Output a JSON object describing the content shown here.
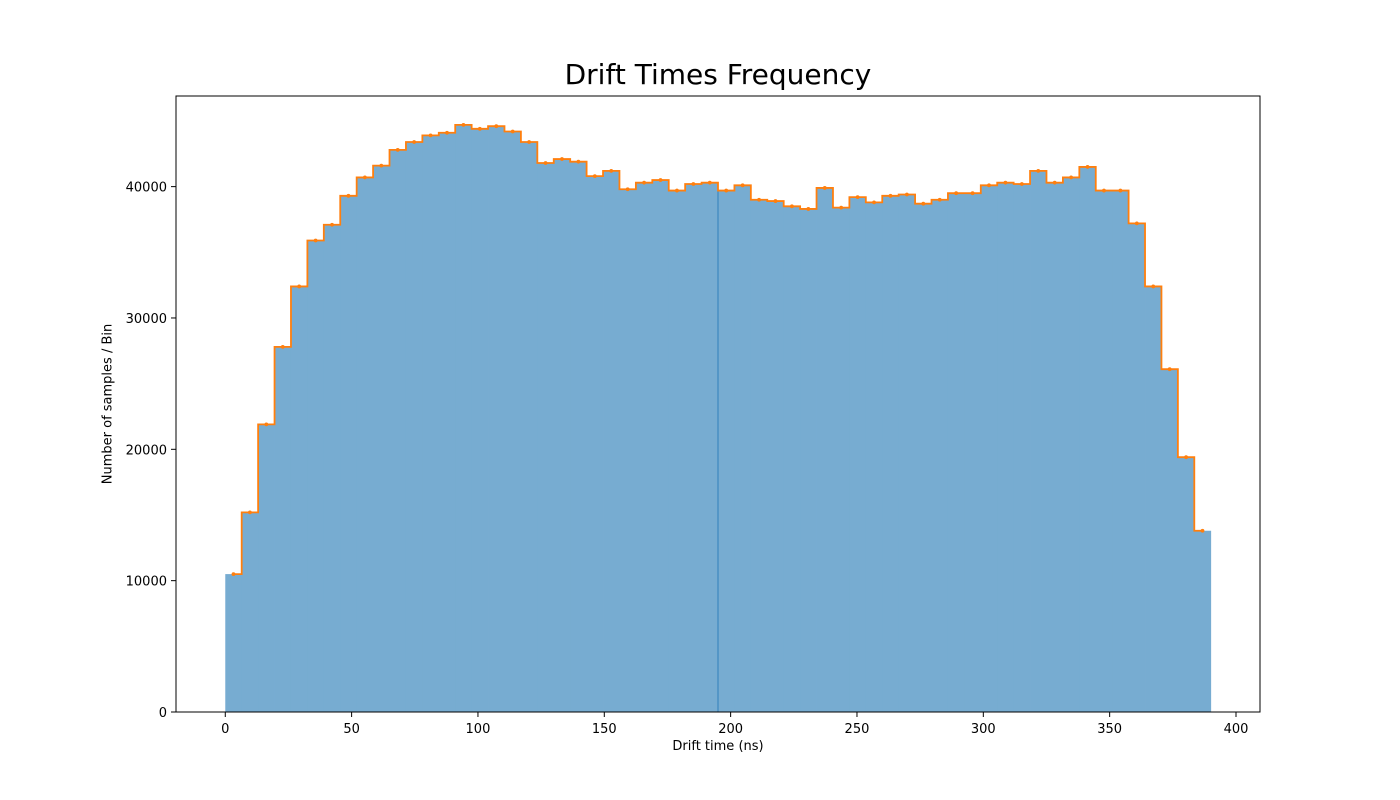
{
  "chart_data": {
    "type": "bar",
    "title": "Drift Times Frequency",
    "xlabel": "Drift time (ns)",
    "ylabel": "Number of samples / Bin",
    "xlim": [
      -19.5,
      409.5
    ],
    "ylim": [
      0,
      46900
    ],
    "grid": false,
    "legend": "none",
    "x_ticks": [
      0,
      50,
      100,
      150,
      200,
      250,
      300,
      350,
      400
    ],
    "y_ticks": [
      0,
      10000,
      20000,
      30000,
      40000
    ],
    "bin_edges": [
      0,
      6.5,
      13,
      19.5,
      26,
      32.5,
      39,
      45.5,
      52,
      58.5,
      65,
      71.5,
      78,
      84.5,
      91,
      97.5,
      104,
      110.5,
      117,
      123.5,
      130,
      136.5,
      143,
      149.5,
      156,
      162.5,
      169,
      175.5,
      182,
      188.5,
      195,
      201.5,
      208,
      214.5,
      221,
      227.5,
      234,
      240.5,
      247,
      253.5,
      260,
      266.5,
      273,
      279.5,
      286,
      292.5,
      299,
      305.5,
      312,
      318.5,
      325,
      331.5,
      338,
      344.5,
      351,
      357.5,
      364,
      370.5,
      377,
      383.5,
      390
    ],
    "values": [
      10500,
      15200,
      21900,
      27800,
      32400,
      35900,
      37100,
      39300,
      40700,
      41600,
      42800,
      43400,
      43900,
      44100,
      44700,
      44400,
      44600,
      44200,
      43400,
      41800,
      42100,
      41900,
      40800,
      41200,
      39800,
      40300,
      40500,
      39700,
      40200,
      40300,
      39700,
      40100,
      39000,
      38900,
      38500,
      38300,
      39900,
      38400,
      39200,
      38800,
      39300,
      39400,
      38700,
      39000,
      39500,
      39500,
      40100,
      40300,
      40200,
      41200,
      40300,
      40700,
      41500,
      39700,
      39700,
      37200,
      32400,
      26100,
      19400,
      13800
    ],
    "series": [
      {
        "style": "filled-step",
        "color": "#1f77b4",
        "alpha": 0.6
      },
      {
        "style": "step-line-with-markers",
        "color": "#ff7f0e"
      }
    ],
    "vertical_line_x": 195,
    "colors": {
      "fill": "#77acd1",
      "line": "#ff7f0e",
      "axis": "#000000",
      "vline": "#1f77b4"
    }
  }
}
